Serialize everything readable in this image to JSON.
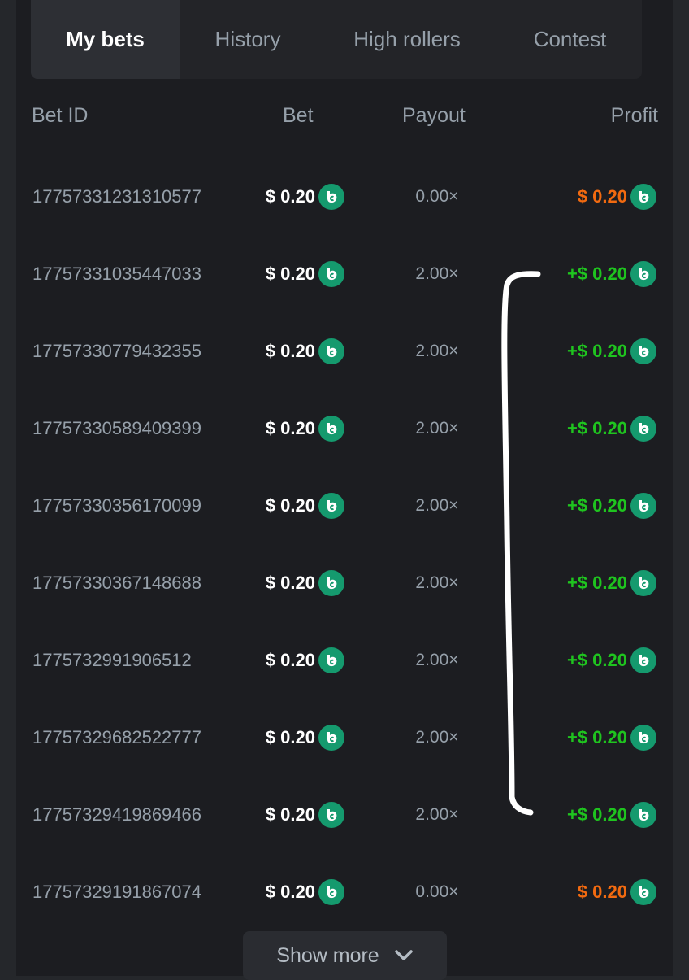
{
  "tabs": [
    {
      "label": "My bets",
      "active": true
    },
    {
      "label": "History",
      "active": false
    },
    {
      "label": "High rollers",
      "active": false
    },
    {
      "label": "Contest",
      "active": false
    }
  ],
  "table": {
    "headers": {
      "bet_id": "Bet ID",
      "bet": "Bet",
      "payout": "Payout",
      "profit": "Profit"
    },
    "rows": [
      {
        "bet_id": "17757331231310577",
        "bet": "$ 0.20",
        "payout": "0.00×",
        "profit": "$ 0.20",
        "result": "loss"
      },
      {
        "bet_id": "17757331035447033",
        "bet": "$ 0.20",
        "payout": "2.00×",
        "profit": "+$ 0.20",
        "result": "win"
      },
      {
        "bet_id": "17757330779432355",
        "bet": "$ 0.20",
        "payout": "2.00×",
        "profit": "+$ 0.20",
        "result": "win"
      },
      {
        "bet_id": "17757330589409399",
        "bet": "$ 0.20",
        "payout": "2.00×",
        "profit": "+$ 0.20",
        "result": "win"
      },
      {
        "bet_id": "17757330356170099",
        "bet": "$ 0.20",
        "payout": "2.00×",
        "profit": "+$ 0.20",
        "result": "win"
      },
      {
        "bet_id": "17757330367148688",
        "bet": "$ 0.20",
        "payout": "2.00×",
        "profit": "+$ 0.20",
        "result": "win"
      },
      {
        "bet_id": "1775732991906512",
        "bet": "$ 0.20",
        "payout": "2.00×",
        "profit": "+$ 0.20",
        "result": "win"
      },
      {
        "bet_id": "17757329682522777",
        "bet": "$ 0.20",
        "payout": "2.00×",
        "profit": "+$ 0.20",
        "result": "win"
      },
      {
        "bet_id": "17757329419869466",
        "bet": "$ 0.20",
        "payout": "2.00×",
        "profit": "+$ 0.20",
        "result": "win"
      },
      {
        "bet_id": "17757329191867074",
        "bet": "$ 0.20",
        "payout": "0.00×",
        "profit": "$ 0.20",
        "result": "loss"
      }
    ]
  },
  "show_more": {
    "label": "Show more",
    "icon": "chevron-down-icon"
  },
  "colors": {
    "win": "#1fc41f",
    "loss": "#f26a10",
    "coin": "#159a6e",
    "annotation": "#ffffff"
  },
  "coin_icon": "bc-coin-icon"
}
